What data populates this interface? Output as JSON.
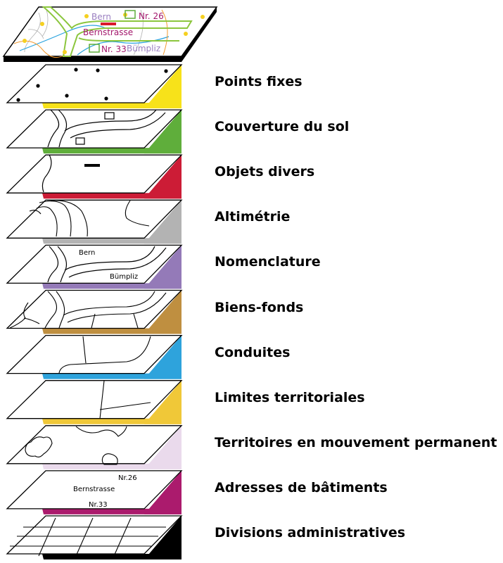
{
  "top_map": {
    "labels": {
      "bern": "Bern",
      "nr26": "Nr. 26",
      "street": "Bernstrasse",
      "nr33": "Nr. 33",
      "bumpliz": "Bümpliz"
    },
    "colors": {
      "road": "#8cc63e",
      "street_text": "#a3176c",
      "bumpliz_text": "#9a7fc0",
      "bern_text": "#9a7fc0",
      "marker": "#d9192c",
      "point": "#f5d020",
      "line_blue": "#29a3de",
      "line_orange": "#f29a2e",
      "contour": "#b0b0b0"
    }
  },
  "layers": [
    {
      "label": "Points fixes",
      "color": "#f7e21a"
    },
    {
      "label": "Couverture du sol",
      "color": "#5fae3b"
    },
    {
      "label": "Objets divers",
      "color": "#cc1c36"
    },
    {
      "label": "Altimétrie",
      "color": "#b3b3b3"
    },
    {
      "label": "Nomenclature",
      "color": "#947ab8"
    },
    {
      "label": "Biens-fonds",
      "color": "#bf8f40"
    },
    {
      "label": "Conduites",
      "color": "#2ea3dc"
    },
    {
      "label": "Limites territoriales",
      "color": "#f0c838"
    },
    {
      "label": "Territoires en mouvement permanent",
      "color": "#eadaec"
    },
    {
      "label": "Adresses de bâtiments",
      "color": "#ab1b6d"
    },
    {
      "label": "Divisions administratives",
      "color": "#000000"
    }
  ],
  "layer_texts": {
    "nomenclature_bern": "Bern",
    "nomenclature_bumpliz": "Bümpliz",
    "address_nr26": "Nr.26",
    "address_street": "Bernstrasse",
    "address_nr33": "Nr.33"
  }
}
